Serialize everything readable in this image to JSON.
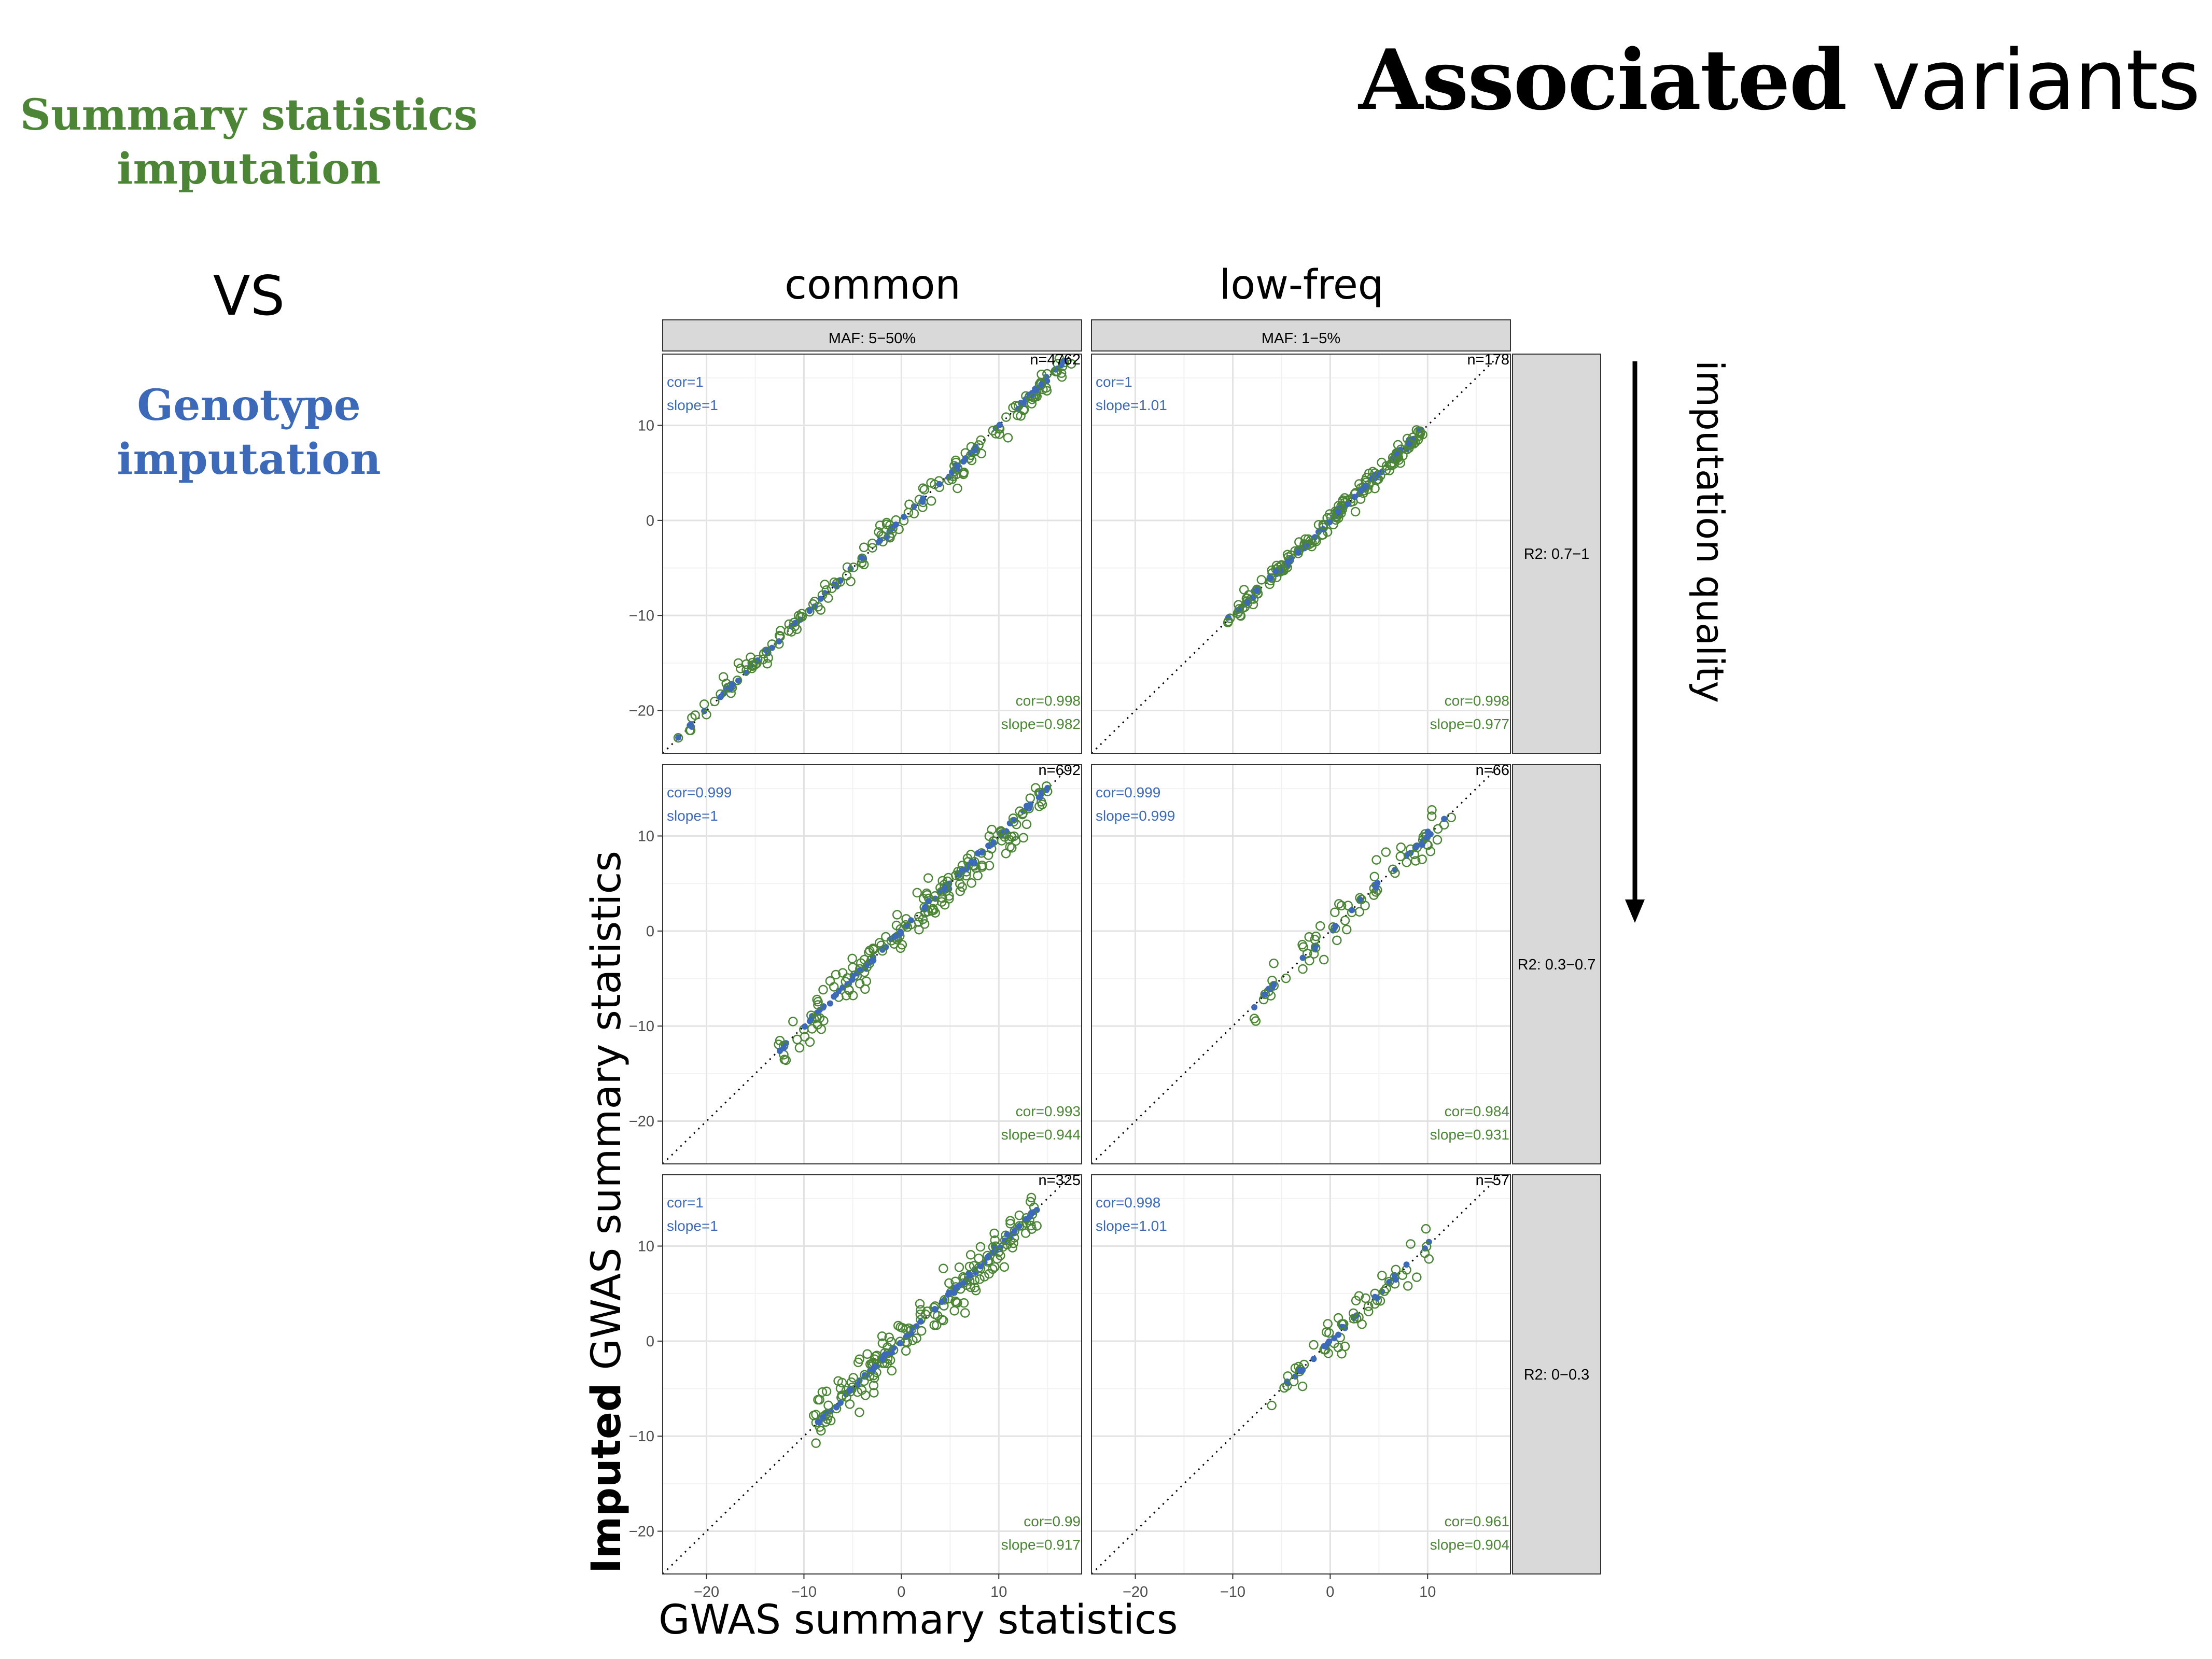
{
  "slide": {
    "title_bold": "Associated",
    "title_rest": " variants",
    "left_top": [
      "Summary statistics",
      "imputation"
    ],
    "vs": "VS",
    "left_bottom": [
      "Genotype",
      "imputation"
    ],
    "column_headers": [
      "common",
      "low-freq"
    ],
    "xlabel": "GWAS summary statistics",
    "ylabel_bold": "Imputed",
    "ylabel_rest": " GWAS summary statistics",
    "side_label": "imputation quality",
    "colors": {
      "green": "#4b8535",
      "blue": "#3d69b9",
      "strip": "#d9d9d9"
    }
  },
  "chart_data": {
    "type": "scatter",
    "xlim": [
      -24.5,
      18.5
    ],
    "ylim": [
      -24.5,
      17.5
    ],
    "x_ticks": [
      -20,
      -10,
      0,
      10
    ],
    "y_ticks": [
      -20,
      -10,
      0,
      10
    ],
    "x_tick_labels": [
      "−20",
      "−10",
      "0",
      "10"
    ],
    "y_tick_labels": [
      "−20",
      "−10",
      "0",
      "10"
    ],
    "grid": true,
    "reference_line": "y = x, dotted",
    "col_strips": [
      "MAF: 5−50%",
      "MAF: 1−5%"
    ],
    "row_strips": [
      "R2: 0.7−1",
      "R2: 0.3−0.7",
      "R2: 0−0.3"
    ],
    "series_colors": {
      "summary_statistics_imputation": "#4b8535",
      "genotype_imputation": "#3d69b9"
    },
    "panels": [
      {
        "row": 0,
        "col": 0,
        "n": "n=4762",
        "blue_cor": "cor=1",
        "blue_slope": "slope=1",
        "green_cor": "cor=0.998",
        "green_slope": "slope=0.982",
        "range": [
          -23.5,
          17.5
        ],
        "spread": 0.7
      },
      {
        "row": 0,
        "col": 1,
        "n": "n=178",
        "blue_cor": "cor=1",
        "blue_slope": "slope=1.01",
        "green_cor": "cor=0.998",
        "green_slope": "slope=0.977",
        "range": [
          -10.5,
          9.5
        ],
        "spread": 0.5
      },
      {
        "row": 1,
        "col": 0,
        "n": "n=692",
        "blue_cor": "cor=0.999",
        "blue_slope": "slope=1",
        "green_cor": "cor=0.993",
        "green_slope": "slope=0.944",
        "range": [
          -13,
          15
        ],
        "spread": 1.1
      },
      {
        "row": 1,
        "col": 1,
        "n": "n=66",
        "blue_cor": "cor=0.999",
        "blue_slope": "slope=0.999",
        "green_cor": "cor=0.984",
        "green_slope": "slope=0.931",
        "range": [
          -8,
          13
        ],
        "spread": 1.2
      },
      {
        "row": 2,
        "col": 0,
        "n": "n=325",
        "blue_cor": "cor=1",
        "blue_slope": "slope=1",
        "green_cor": "cor=0.99",
        "green_slope": "slope=0.917",
        "range": [
          -9,
          14
        ],
        "spread": 1.2
      },
      {
        "row": 2,
        "col": 1,
        "n": "n=57",
        "blue_cor": "cor=0.998",
        "blue_slope": "slope=1.01",
        "green_cor": "cor=0.961",
        "green_slope": "slope=0.904",
        "range": [
          -6,
          10.5
        ],
        "spread": 1.3
      }
    ]
  }
}
